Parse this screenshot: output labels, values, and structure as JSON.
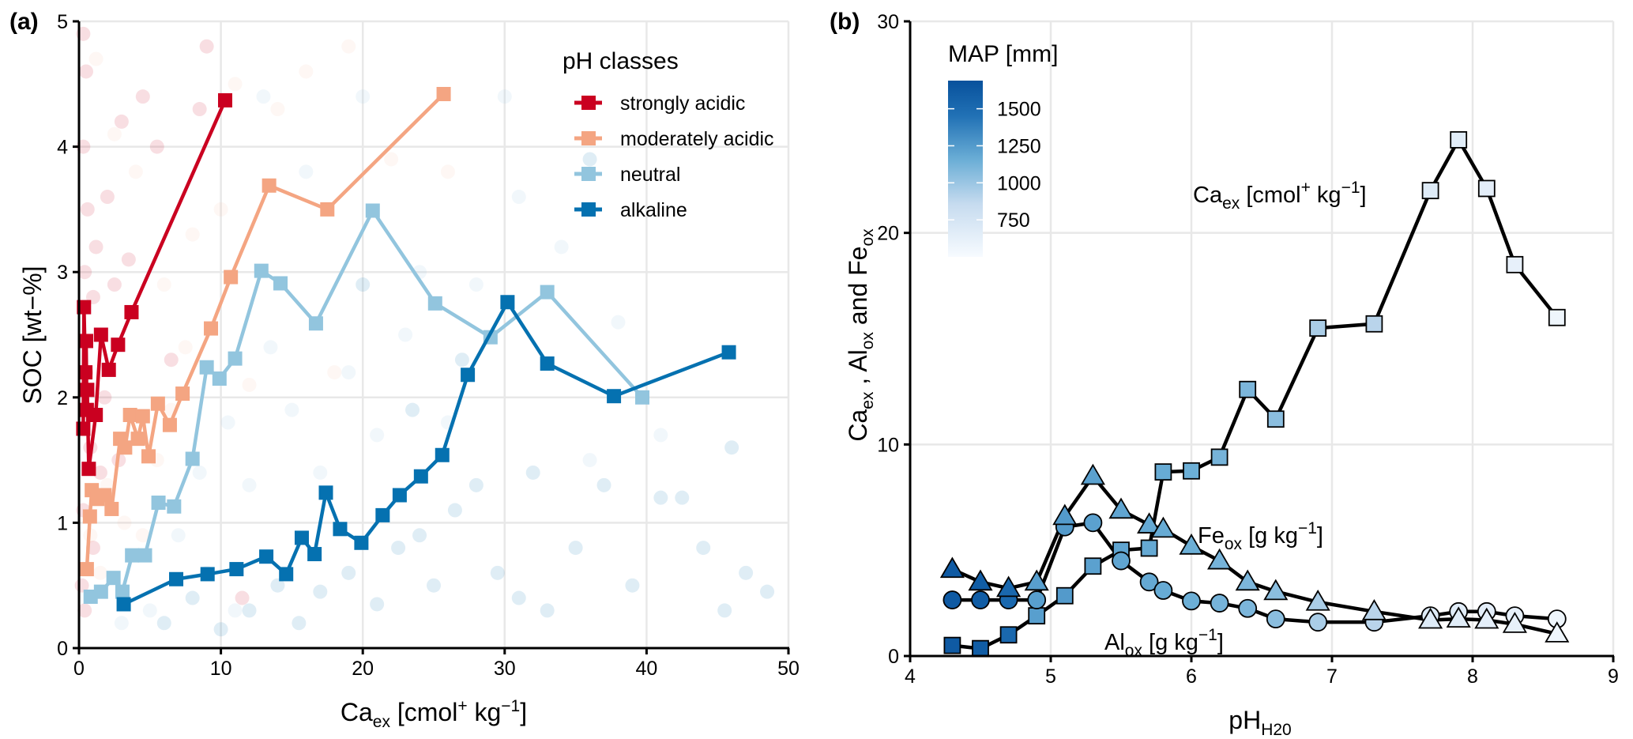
{
  "chart_data": [
    {
      "panel": "(a)",
      "type": "line",
      "xlabel": "Ca_ex [cmol+ kg-1]",
      "xlabel_parts": {
        "main": "Ca",
        "sub": "ex",
        "rest1": " [cmol",
        "sup1": "+",
        "rest2": " kg",
        "sup2": "−1",
        "rest3": "]"
      },
      "ylabel": "SOC [wt−%]",
      "xlim": [
        0,
        50
      ],
      "ylim": [
        0,
        5
      ],
      "xticks": [
        0,
        10,
        20,
        30,
        40,
        50
      ],
      "yticks": [
        0,
        1,
        2,
        3,
        4,
        5
      ],
      "grid": true,
      "legend": {
        "title": "pH classes",
        "position": "top-right"
      },
      "series": [
        {
          "name": "strongly acidic",
          "color": "#ca0020",
          "points": [
            [
              0.3,
              1.75
            ],
            [
              0.35,
              2.72
            ],
            [
              0.45,
              2.2
            ],
            [
              0.5,
              2.45
            ],
            [
              0.55,
              1.9
            ],
            [
              0.58,
              2.06
            ],
            [
              0.69,
              1.43
            ],
            [
              1.18,
              1.86
            ],
            [
              1.55,
              2.5
            ],
            [
              2.1,
              2.22
            ],
            [
              2.75,
              2.42
            ],
            [
              3.7,
              2.68
            ],
            [
              10.3,
              4.37
            ]
          ]
        },
        {
          "name": "moderately acidic",
          "color": "#f4a582",
          "points": [
            [
              0.55,
              0.63
            ],
            [
              0.77,
              1.05
            ],
            [
              0.9,
              1.26
            ],
            [
              1.3,
              1.19
            ],
            [
              1.8,
              1.22
            ],
            [
              2.3,
              1.11
            ],
            [
              2.9,
              1.67
            ],
            [
              3.25,
              1.6
            ],
            [
              3.6,
              1.86
            ],
            [
              4.15,
              1.67
            ],
            [
              4.5,
              1.85
            ],
            [
              4.9,
              1.53
            ],
            [
              5.56,
              1.95
            ],
            [
              6.4,
              1.78
            ],
            [
              7.3,
              2.03
            ],
            [
              9.3,
              2.55
            ],
            [
              10.7,
              2.96
            ],
            [
              13.4,
              3.69
            ],
            [
              17.5,
              3.5
            ],
            [
              25.7,
              4.42
            ]
          ]
        },
        {
          "name": "neutral",
          "color": "#92c5de",
          "points": [
            [
              0.82,
              0.41
            ],
            [
              1.55,
              0.45
            ],
            [
              2.43,
              0.56
            ],
            [
              3.06,
              0.45
            ],
            [
              3.74,
              0.74
            ],
            [
              4.65,
              0.74
            ],
            [
              5.6,
              1.16
            ],
            [
              6.7,
              1.13
            ],
            [
              8.0,
              1.51
            ],
            [
              9.0,
              2.24
            ],
            [
              9.9,
              2.15
            ],
            [
              11.0,
              2.31
            ],
            [
              12.85,
              3.01
            ],
            [
              14.2,
              2.91
            ],
            [
              16.7,
              2.59
            ],
            [
              20.7,
              3.49
            ],
            [
              25.1,
              2.75
            ],
            [
              29.0,
              2.48
            ],
            [
              33.0,
              2.84
            ],
            [
              39.7,
              2.0
            ]
          ]
        },
        {
          "name": "alkaline",
          "color": "#0571b0",
          "points": [
            [
              3.15,
              0.35
            ],
            [
              6.85,
              0.55
            ],
            [
              9.06,
              0.59
            ],
            [
              11.1,
              0.63
            ],
            [
              13.2,
              0.73
            ],
            [
              14.6,
              0.59
            ],
            [
              15.7,
              0.88
            ],
            [
              16.6,
              0.75
            ],
            [
              17.4,
              1.24
            ],
            [
              18.4,
              0.95
            ],
            [
              19.9,
              0.84
            ],
            [
              21.4,
              1.06
            ],
            [
              22.6,
              1.22
            ],
            [
              24.1,
              1.37
            ],
            [
              25.6,
              1.54
            ],
            [
              27.4,
              2.18
            ],
            [
              30.2,
              2.76
            ],
            [
              33.0,
              2.27
            ],
            [
              37.7,
              2.01
            ],
            [
              45.8,
              2.36
            ]
          ]
        }
      ],
      "background_points_sample": {
        "strongly acidic": [
          [
            0.3,
            4.9
          ],
          [
            0.5,
            4.6
          ],
          [
            0.3,
            4.0
          ],
          [
            0.6,
            3.5
          ],
          [
            1.2,
            3.2
          ],
          [
            2.0,
            3.6
          ],
          [
            3.0,
            4.2
          ],
          [
            4.5,
            4.4
          ],
          [
            5.5,
            4.0
          ],
          [
            8.5,
            4.3
          ],
          [
            0.4,
            3.0
          ],
          [
            1.0,
            2.8
          ],
          [
            2.5,
            2.9
          ],
          [
            3.5,
            3.1
          ],
          [
            0.2,
            0.5
          ],
          [
            0.4,
            0.3
          ],
          [
            1.0,
            0.8
          ],
          [
            1.5,
            1.4
          ],
          [
            0.8,
            1.6
          ],
          [
            2.8,
            1.5
          ],
          [
            0.3,
            1.1
          ],
          [
            6.5,
            2.3
          ],
          [
            9.0,
            4.8
          ],
          [
            11.5,
            0.4
          ],
          [
            0.5,
            2.2
          ],
          [
            1.8,
            2.0
          ]
        ],
        "moderately acidic": [
          [
            1.2,
            4.7
          ],
          [
            2.5,
            4.1
          ],
          [
            4.0,
            3.8
          ],
          [
            6.0,
            2.9
          ],
          [
            8.0,
            3.3
          ],
          [
            11.0,
            4.5
          ],
          [
            14.0,
            4.3
          ],
          [
            16.0,
            4.6
          ],
          [
            19.0,
            4.8
          ],
          [
            22.0,
            3.9
          ],
          [
            2.0,
            1.3
          ],
          [
            3.2,
            1.0
          ],
          [
            4.5,
            0.9
          ],
          [
            5.5,
            1.5
          ],
          [
            6.5,
            1.9
          ],
          [
            7.5,
            2.4
          ],
          [
            10.0,
            3.5
          ],
          [
            12.0,
            2.1
          ],
          [
            18.0,
            2.2
          ],
          [
            26.0,
            3.8
          ],
          [
            1.5,
            0.6
          ],
          [
            0.8,
            0.9
          ]
        ],
        "neutral": [
          [
            5.0,
            0.3
          ],
          [
            7.0,
            0.9
          ],
          [
            8.5,
            1.4
          ],
          [
            10.5,
            1.8
          ],
          [
            12.0,
            1.3
          ],
          [
            13.5,
            2.4
          ],
          [
            15.0,
            1.9
          ],
          [
            17.0,
            1.4
          ],
          [
            19.0,
            2.2
          ],
          [
            21.0,
            1.7
          ],
          [
            23.0,
            2.5
          ],
          [
            24.0,
            3.0
          ],
          [
            26.0,
            1.8
          ],
          [
            28.0,
            2.9
          ],
          [
            31.0,
            3.6
          ],
          [
            34.0,
            3.2
          ],
          [
            36.0,
            1.5
          ],
          [
            38.0,
            2.6
          ],
          [
            13.0,
            4.4
          ],
          [
            16.0,
            3.8
          ],
          [
            20.0,
            4.4
          ],
          [
            9.0,
            0.6
          ],
          [
            11.0,
            0.3
          ],
          [
            3.0,
            0.2
          ],
          [
            30.0,
            4.4
          ],
          [
            41.0,
            1.7
          ]
        ],
        "alkaline": [
          [
            6.0,
            0.2
          ],
          [
            8.0,
            0.4
          ],
          [
            10.0,
            0.15
          ],
          [
            12.0,
            0.3
          ],
          [
            14.0,
            0.5
          ],
          [
            15.5,
            0.2
          ],
          [
            17.0,
            0.45
          ],
          [
            19.0,
            0.6
          ],
          [
            21.0,
            0.35
          ],
          [
            22.5,
            0.8
          ],
          [
            24.0,
            0.9
          ],
          [
            25.0,
            0.5
          ],
          [
            26.5,
            1.1
          ],
          [
            28.0,
            1.3
          ],
          [
            29.5,
            0.6
          ],
          [
            31.0,
            0.4
          ],
          [
            33.0,
            0.3
          ],
          [
            35.0,
            0.8
          ],
          [
            37.0,
            1.3
          ],
          [
            39.0,
            0.5
          ],
          [
            41.0,
            1.2
          ],
          [
            44.0,
            0.8
          ],
          [
            46.0,
            1.6
          ],
          [
            48.5,
            0.45
          ],
          [
            47.0,
            0.6
          ],
          [
            45.5,
            0.3
          ],
          [
            42.5,
            1.2
          ],
          [
            32.0,
            1.4
          ],
          [
            27.0,
            2.3
          ],
          [
            23.5,
            1.9
          ],
          [
            36.0,
            3.9
          ],
          [
            20.0,
            2.9
          ]
        ]
      }
    },
    {
      "panel": "(b)",
      "type": "line",
      "xlabel": "pH_H20",
      "xlabel_parts": {
        "main": "pH",
        "sub": "H20"
      },
      "ylabel": "Ca_ex , Al_ox and Fe_ox",
      "ylabel_parts": [
        "Ca",
        "ex",
        " , Al",
        "ox",
        " and Fe",
        "ox"
      ],
      "xlim": [
        4,
        9
      ],
      "ylim": [
        0,
        30
      ],
      "xticks": [
        4,
        5,
        6,
        7,
        8,
        9
      ],
      "yticks": [
        0,
        10,
        20,
        30
      ],
      "grid": true,
      "colorbar": {
        "title": "MAP [mm]",
        "range": [
          500,
          1690
        ],
        "ticks": [
          750,
          1000,
          1250,
          1500
        ],
        "low_color": "#f7fbff",
        "high_color": "#08519c",
        "position": "top-left"
      },
      "annotations": [
        {
          "series": "Ca",
          "main": "Ca",
          "sub": "ex",
          "rest": " [cmol",
          "sup1": "+",
          "rest2": " kg",
          "sup2": "−1",
          "rest3": "]"
        },
        {
          "series": "Fe",
          "main": "Fe",
          "sub": "ox",
          "rest": " [g kg",
          "sup2": "−1",
          "rest3": "]"
        },
        {
          "series": "Al",
          "main": "Al",
          "sub": "ox",
          "rest": " [g kg",
          "sup2": "−1",
          "rest3": "]"
        }
      ],
      "x": [
        4.3,
        4.5,
        4.7,
        4.9,
        5.1,
        5.3,
        5.5,
        5.7,
        5.8,
        6.0,
        6.2,
        6.4,
        6.6,
        6.9,
        7.3,
        7.7,
        7.9,
        8.1,
        8.3,
        8.6
      ],
      "MAP": [
        1620,
        1600,
        1520,
        1230,
        1250,
        1220,
        1200,
        1180,
        1170,
        1150,
        1120,
        1100,
        1050,
        950,
        900,
        680,
        660,
        640,
        620,
        560
      ],
      "series": [
        {
          "name": "Ca_ex",
          "unit": "cmol+ kg-1",
          "marker": "square",
          "values": [
            0.5,
            0.35,
            1.0,
            1.9,
            2.85,
            4.25,
            5.0,
            5.1,
            8.7,
            8.75,
            9.4,
            12.6,
            11.2,
            15.5,
            15.7,
            22.0,
            24.4,
            22.1,
            18.5,
            16.0
          ]
        },
        {
          "name": "Fe_ox",
          "unit": "g kg-1",
          "marker": "triangle",
          "values": [
            4.1,
            3.5,
            3.2,
            3.5,
            6.6,
            8.5,
            6.9,
            6.2,
            6.0,
            5.2,
            4.5,
            3.5,
            3.05,
            2.55,
            2.1,
            1.7,
            1.75,
            1.7,
            1.5,
            1.05
          ]
        },
        {
          "name": "Al_ox",
          "unit": "g kg-1",
          "marker": "circle",
          "values": [
            2.65,
            2.65,
            2.65,
            2.65,
            6.1,
            6.3,
            4.5,
            3.5,
            3.1,
            2.6,
            2.5,
            2.25,
            1.75,
            1.6,
            1.6,
            1.9,
            2.1,
            2.1,
            1.9,
            1.75
          ]
        }
      ]
    }
  ]
}
